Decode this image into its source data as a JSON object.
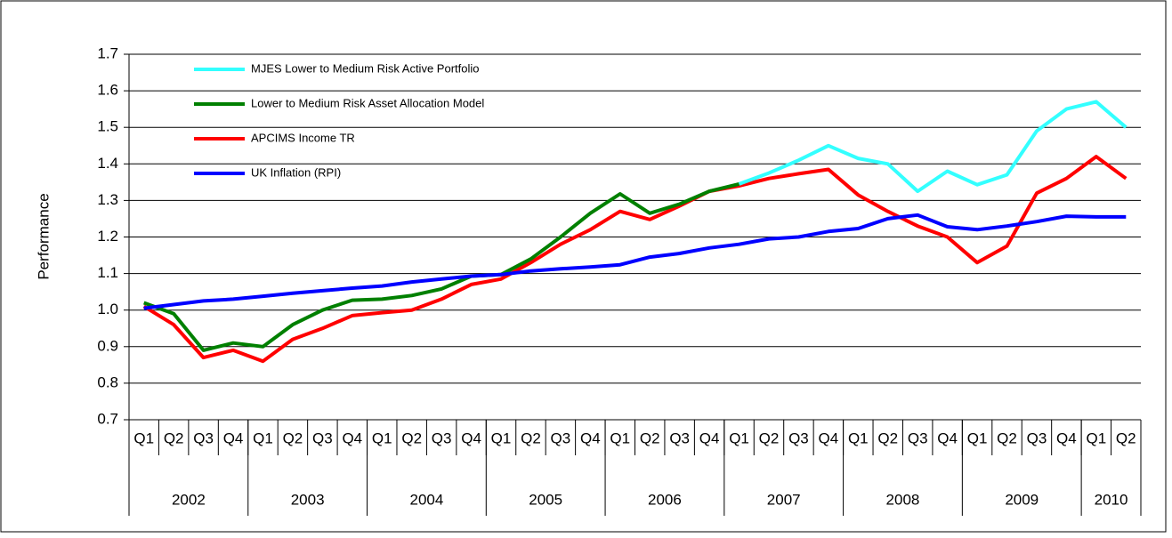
{
  "chart_data": {
    "type": "line",
    "y_label": "Performance",
    "categories": [
      "Q1",
      "Q2",
      "Q3",
      "Q4",
      "Q1",
      "Q2",
      "Q3",
      "Q4",
      "Q1",
      "Q2",
      "Q3",
      "Q4",
      "Q1",
      "Q2",
      "Q3",
      "Q4",
      "Q1",
      "Q2",
      "Q3",
      "Q4",
      "Q1",
      "Q2",
      "Q3",
      "Q4",
      "Q1",
      "Q2",
      "Q3",
      "Q4",
      "Q1",
      "Q2",
      "Q3",
      "Q4",
      "Q1",
      "Q2"
    ],
    "category_groups": [
      {
        "label": "2002",
        "count": 4
      },
      {
        "label": "2003",
        "count": 4
      },
      {
        "label": "2004",
        "count": 4
      },
      {
        "label": "2005",
        "count": 4
      },
      {
        "label": "2006",
        "count": 4
      },
      {
        "label": "2007",
        "count": 4
      },
      {
        "label": "2008",
        "count": 4
      },
      {
        "label": "2009",
        "count": 4
      },
      {
        "label": "2010",
        "count": 2
      }
    ],
    "series": [
      {
        "name": "MJES Lower to Medium Risk Active Portfolio",
        "color": "#33ffff",
        "values": [
          null,
          null,
          null,
          null,
          null,
          null,
          null,
          null,
          null,
          null,
          null,
          null,
          null,
          null,
          null,
          null,
          null,
          null,
          null,
          null,
          1.345,
          1.375,
          1.41,
          1.45,
          1.415,
          1.4,
          1.325,
          1.38,
          1.343,
          1.37,
          1.49,
          1.55,
          1.57,
          1.5
        ]
      },
      {
        "name": "Lower to Medium Risk Asset Allocation Model",
        "color": "#008000",
        "values": [
          1.02,
          0.99,
          0.89,
          0.91,
          0.9,
          0.96,
          1.0,
          1.027,
          1.03,
          1.04,
          1.058,
          1.093,
          1.097,
          1.14,
          1.2,
          1.265,
          1.318,
          1.265,
          1.29,
          1.325,
          1.345,
          null,
          null,
          null,
          null,
          null,
          null,
          null,
          null,
          null,
          null,
          null,
          null,
          null
        ]
      },
      {
        "name": "APCIMS Income TR",
        "color": "#ff0000",
        "values": [
          1.01,
          0.96,
          0.87,
          0.89,
          0.86,
          0.92,
          0.95,
          0.985,
          0.993,
          1.0,
          1.03,
          1.07,
          1.085,
          1.13,
          1.18,
          1.22,
          1.27,
          1.248,
          1.285,
          1.325,
          1.34,
          1.36,
          1.373,
          1.385,
          1.315,
          1.27,
          1.23,
          1.2,
          1.13,
          1.175,
          1.32,
          1.36,
          1.42,
          1.36
        ]
      },
      {
        "name": "UK Inflation (RPI)",
        "color": "#0000ff",
        "values": [
          1.005,
          1.015,
          1.025,
          1.03,
          1.038,
          1.046,
          1.053,
          1.06,
          1.066,
          1.077,
          1.085,
          1.093,
          1.097,
          1.107,
          1.113,
          1.118,
          1.124,
          1.145,
          1.155,
          1.17,
          1.18,
          1.195,
          1.2,
          1.215,
          1.223,
          1.25,
          1.26,
          1.228,
          1.22,
          1.23,
          1.242,
          1.257,
          1.255,
          1.255
        ]
      }
    ],
    "ylim": [
      0.7,
      1.7
    ],
    "yticks": [
      0.7,
      0.8,
      0.9,
      {
        "value": 1,
        "label": "1.0"
      },
      1.1,
      1.2,
      1.3,
      1.4,
      1.5,
      1.6,
      1.7
    ],
    "grid": true,
    "legend": "top-left"
  }
}
